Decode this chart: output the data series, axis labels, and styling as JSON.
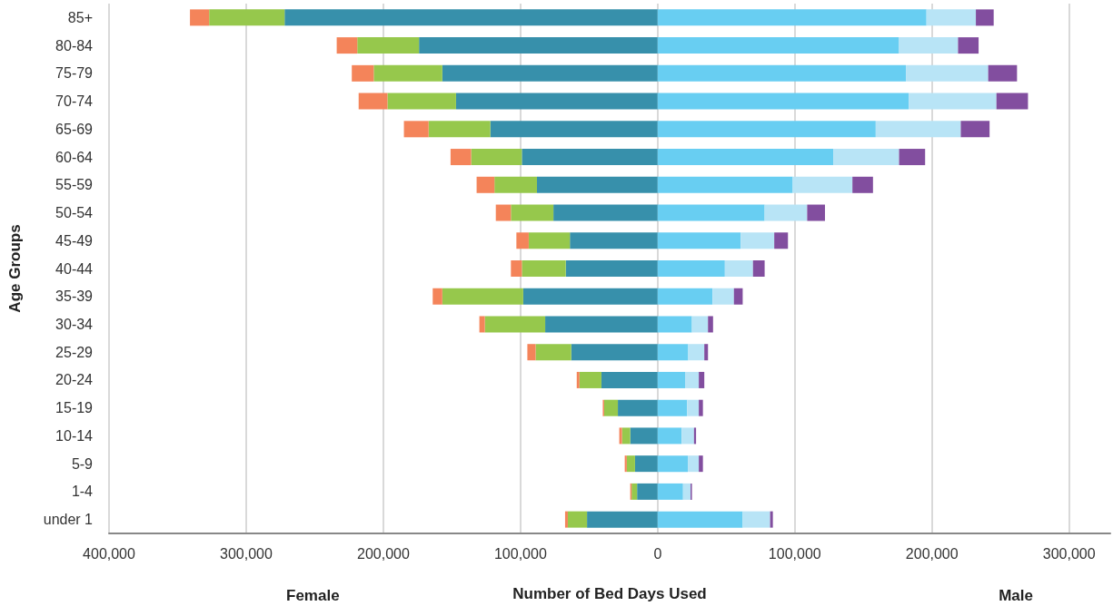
{
  "chart_data": {
    "type": "bar",
    "orientation": "horizontal",
    "stacked": true,
    "xlabel": "Number of Bed Days Used",
    "ylabel": "Age Groups",
    "annotations": [
      "Female",
      "Male"
    ],
    "categories": [
      "85+",
      "80-84",
      "75-79",
      "70-74",
      "65-69",
      "60-64",
      "55-59",
      "50-54",
      "45-49",
      "40-44",
      "35-39",
      "30-34",
      "25-29",
      "20-24",
      "15-19",
      "10-14",
      "5-9",
      "1-4",
      "under 1"
    ],
    "xlim": [
      -400000,
      330000
    ],
    "xticks": [
      {
        "value": -400000,
        "label": "400,000"
      },
      {
        "value": -300000,
        "label": "300,000"
      },
      {
        "value": -200000,
        "label": "200,000"
      },
      {
        "value": -100000,
        "label": "100,000"
      },
      {
        "value": 0,
        "label": "0"
      },
      {
        "value": 100000,
        "label": "100,000"
      },
      {
        "value": 200000,
        "label": "200,000"
      },
      {
        "value": 300000,
        "label": "300,000"
      }
    ],
    "grid": "x",
    "series": [
      {
        "color": "#3790ab",
        "values": [
          -272000,
          -174000,
          -157000,
          -147000,
          -122000,
          -99000,
          -88000,
          -76000,
          -64000,
          -67000,
          -98000,
          -82000,
          -63000,
          -41000,
          -29000,
          -20000,
          -16500,
          -15000,
          -51500
        ]
      },
      {
        "color": "#96c84c",
        "values": [
          -55000,
          -45000,
          -50000,
          -50000,
          -45000,
          -37000,
          -31000,
          -31000,
          -30000,
          -32000,
          -59000,
          -44000,
          -26000,
          -16000,
          -10000,
          -6000,
          -6000,
          -4000,
          -14000
        ]
      },
      {
        "color": "#f4845a",
        "values": [
          -14000,
          -15000,
          -16000,
          -21000,
          -18000,
          -15000,
          -13000,
          -11000,
          -9000,
          -8000,
          -7000,
          -4000,
          -6000,
          -2000,
          -1000,
          -2000,
          -1500,
          -1000,
          -2000
        ]
      },
      {
        "color": "#68cef2",
        "values": [
          196000,
          176000,
          181000,
          183000,
          159000,
          128000,
          98500,
          78000,
          60500,
          49000,
          40000,
          25000,
          22300,
          20000,
          21500,
          17500,
          22000,
          18500,
          62000
        ]
      },
      {
        "color": "#b8e4f6",
        "values": [
          36000,
          43000,
          60000,
          64000,
          62000,
          48000,
          43500,
          31000,
          24500,
          20500,
          15600,
          11700,
          11700,
          10000,
          8500,
          9000,
          8000,
          5500,
          20000
        ]
      },
      {
        "color": "#824e9f",
        "values": [
          13000,
          15000,
          21000,
          23000,
          21000,
          19000,
          15000,
          13000,
          10000,
          8500,
          6400,
          3700,
          2700,
          4000,
          3000,
          1500,
          3000,
          1000,
          2000
        ]
      }
    ]
  }
}
